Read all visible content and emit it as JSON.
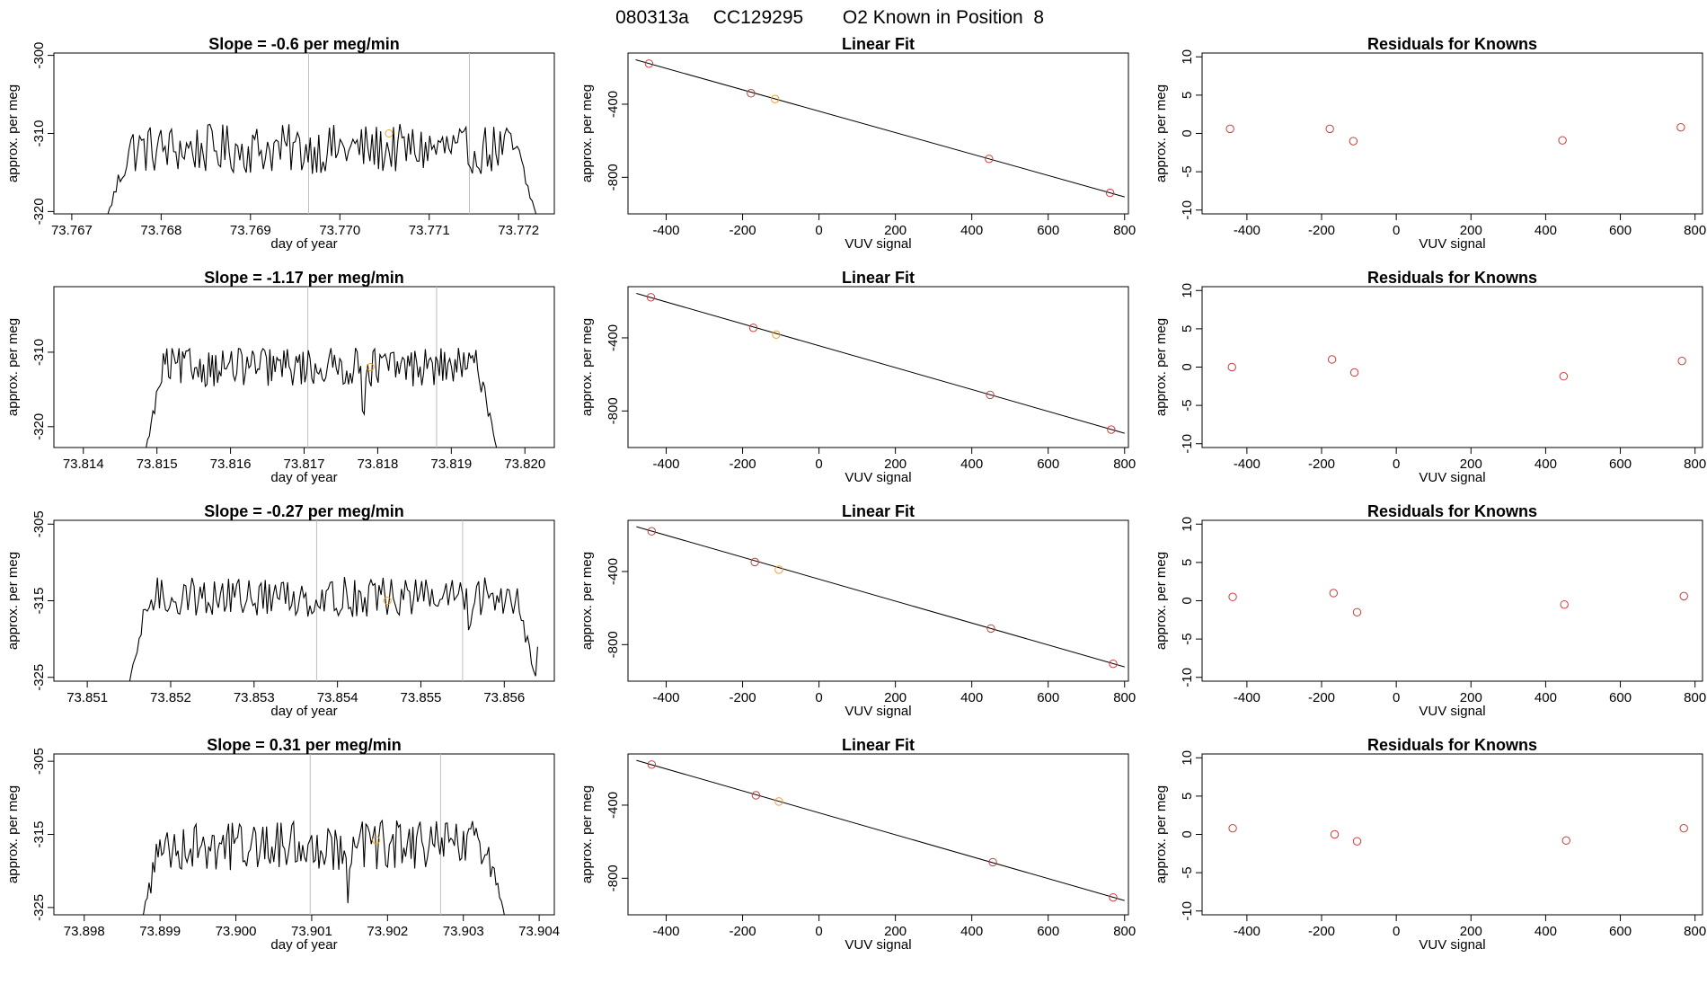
{
  "page": {
    "title_parts": [
      "080313a",
      "CC129295",
      "O2 Known in Position  8"
    ]
  },
  "colors": {
    "trace": "#000000",
    "point": "#cd3b3b",
    "highlight": "#f0a030",
    "guide": "#bebebe"
  },
  "chart_data": [
    {
      "type": "line",
      "row": 0,
      "col": 0,
      "title": "Slope =  -0.6  per meg/min",
      "xlabel": "day of year",
      "ylabel": "approx. per meg",
      "xlim": [
        73.7668,
        73.7724
      ],
      "ylim": [
        -320.3,
        -299.7
      ],
      "xticks": [
        73.767,
        73.768,
        73.769,
        73.77,
        73.771,
        73.772
      ],
      "xtick_labels": [
        "73.767",
        "73.768",
        "73.769",
        "73.770",
        "73.771",
        "73.772"
      ],
      "yticks": [
        -320,
        -310,
        -300
      ],
      "ytick_labels": [
        "-320",
        "-310",
        "-300"
      ],
      "guides": [
        73.76965,
        73.77145
      ],
      "trace_x_range": [
        73.7674,
        73.7722
      ],
      "trace_baseline": -312,
      "trace_amp": 3.2,
      "drop_start": -320.5,
      "drop_end": -320.5,
      "dip_near": 73.77145,
      "highlight_point": {
        "x": 73.77055,
        "y": -310
      }
    },
    {
      "type": "scatter",
      "row": 0,
      "col": 1,
      "title": "Linear Fit",
      "xlabel": "VUV signal",
      "ylabel": "approx. per meg",
      "xlim": [
        -500,
        810
      ],
      "ylim": [
        -1000,
        -120
      ],
      "xticks": [
        -400,
        -200,
        0,
        200,
        400,
        600,
        800
      ],
      "xtick_labels": [
        "-400",
        "-200",
        "0",
        "200",
        "400",
        "600",
        "800"
      ],
      "yticks": [
        -800,
        -400
      ],
      "ytick_labels": [
        "-800",
        "-400"
      ],
      "points": [
        [
          -445,
          -178
        ],
        [
          -178,
          -340
        ],
        [
          -115,
          -372
        ],
        [
          445,
          -699
        ],
        [
          762,
          -885
        ]
      ],
      "highlight_index": 2,
      "fit": {
        "x0": -480,
        "y0": -157,
        "x1": 800,
        "y1": -907
      }
    },
    {
      "type": "scatter",
      "row": 0,
      "col": 2,
      "title": "Residuals for Knowns",
      "xlabel": "VUV signal",
      "ylabel": "approx. per meg",
      "xlim": [
        -520,
        820
      ],
      "ylim": [
        -10.5,
        10.5
      ],
      "xticks": [
        -400,
        -200,
        0,
        200,
        400,
        600,
        800
      ],
      "xtick_labels": [
        "-400",
        "-200",
        "0",
        "200",
        "400",
        "600",
        "800"
      ],
      "yticks": [
        -10,
        -5,
        0,
        5,
        10
      ],
      "ytick_labels": [
        "-10",
        "-5",
        "0",
        "5",
        "10"
      ],
      "points": [
        [
          -445,
          0.6
        ],
        [
          -178,
          0.6
        ],
        [
          -115,
          -1.0
        ],
        [
          445,
          -0.9
        ],
        [
          762,
          0.8
        ]
      ]
    },
    {
      "type": "line",
      "row": 1,
      "col": 0,
      "title": "Slope =  -1.17  per meg/min",
      "xlabel": "day of year",
      "ylabel": "approx. per meg",
      "xlim": [
        73.8136,
        73.8204
      ],
      "ylim": [
        -322.8,
        -301.2
      ],
      "xticks": [
        73.814,
        73.815,
        73.816,
        73.817,
        73.818,
        73.819,
        73.82
      ],
      "xtick_labels": [
        "73.814",
        "73.815",
        "73.816",
        "73.817",
        "73.818",
        "73.819",
        "73.820"
      ],
      "yticks": [
        -320,
        -310
      ],
      "ytick_labels": [
        "-320",
        "-310"
      ],
      "guides": [
        73.81705,
        73.8188
      ],
      "trace_x_range": [
        73.81485,
        73.81962
      ],
      "trace_baseline": -312,
      "trace_amp": 2.6,
      "drop_start": -323,
      "drop_end": -323,
      "dip_near": 73.8178,
      "highlight_point": {
        "x": 73.8179,
        "y": -312
      }
    },
    {
      "type": "scatter",
      "row": 1,
      "col": 1,
      "title": "Linear Fit",
      "xlabel": "VUV signal",
      "ylabel": "approx. per meg",
      "xlim": [
        -500,
        810
      ],
      "ylim": [
        -1000,
        -120
      ],
      "xticks": [
        -400,
        -200,
        0,
        200,
        400,
        600,
        800
      ],
      "xtick_labels": [
        "-400",
        "-200",
        "0",
        "200",
        "400",
        "600",
        "800"
      ],
      "yticks": [
        -800,
        -400
      ],
      "ytick_labels": [
        "-800",
        "-400"
      ],
      "points": [
        [
          -440,
          -178
        ],
        [
          -172,
          -345
        ],
        [
          -112,
          -382
        ],
        [
          448,
          -712
        ],
        [
          765,
          -902
        ]
      ],
      "highlight_index": 2,
      "fit": {
        "x0": -478,
        "y0": -157,
        "x1": 800,
        "y1": -922
      }
    },
    {
      "type": "scatter",
      "row": 1,
      "col": 2,
      "title": "Residuals for Knowns",
      "xlabel": "VUV signal",
      "ylabel": "approx. per meg",
      "xlim": [
        -520,
        820
      ],
      "ylim": [
        -10.5,
        10.5
      ],
      "xticks": [
        -400,
        -200,
        0,
        200,
        400,
        600,
        800
      ],
      "xtick_labels": [
        "-400",
        "-200",
        "0",
        "200",
        "400",
        "600",
        "800"
      ],
      "yticks": [
        -10,
        -5,
        0,
        5,
        10
      ],
      "ytick_labels": [
        "-10",
        "-5",
        "0",
        "5",
        "10"
      ],
      "points": [
        [
          -440,
          0.0
        ],
        [
          -172,
          1.0
        ],
        [
          -112,
          -0.7
        ],
        [
          448,
          -1.2
        ],
        [
          765,
          0.8
        ]
      ]
    },
    {
      "type": "line",
      "row": 2,
      "col": 0,
      "title": "Slope =  -0.27  per meg/min",
      "xlabel": "day of year",
      "ylabel": "approx. per meg",
      "xlim": [
        73.8506,
        73.8566
      ],
      "ylim": [
        -325.5,
        -304.5
      ],
      "xticks": [
        73.851,
        73.852,
        73.853,
        73.854,
        73.855,
        73.856
      ],
      "xtick_labels": [
        "73.851",
        "73.852",
        "73.853",
        "73.854",
        "73.855",
        "73.856"
      ],
      "yticks": [
        -325,
        -315,
        -305
      ],
      "ytick_labels": [
        "-325",
        "-315",
        "-305"
      ],
      "guides": [
        73.85375,
        73.8555
      ],
      "trace_x_range": [
        73.8515,
        73.8564
      ],
      "trace_baseline": -314.5,
      "trace_amp": 2.6,
      "drop_start": -326,
      "drop_end": -321,
      "dip_near": 73.8556,
      "highlight_point": {
        "x": 73.8546,
        "y": -315
      }
    },
    {
      "type": "scatter",
      "row": 2,
      "col": 1,
      "title": "Linear Fit",
      "xlabel": "VUV signal",
      "ylabel": "approx. per meg",
      "xlim": [
        -500,
        810
      ],
      "ylim": [
        -1000,
        -120
      ],
      "xticks": [
        -400,
        -200,
        0,
        200,
        400,
        600,
        800
      ],
      "xtick_labels": [
        "-400",
        "-200",
        "0",
        "200",
        "400",
        "600",
        "800"
      ],
      "yticks": [
        -800,
        -400
      ],
      "ytick_labels": [
        "-800",
        "-400"
      ],
      "points": [
        [
          -438,
          -180
        ],
        [
          -168,
          -348
        ],
        [
          -105,
          -390
        ],
        [
          450,
          -712
        ],
        [
          770,
          -905
        ]
      ],
      "highlight_index": 2,
      "fit": {
        "x0": -478,
        "y0": -155,
        "x1": 800,
        "y1": -922
      }
    },
    {
      "type": "scatter",
      "row": 2,
      "col": 2,
      "title": "Residuals for Knowns",
      "xlabel": "VUV signal",
      "ylabel": "approx. per meg",
      "xlim": [
        -520,
        820
      ],
      "ylim": [
        -10.5,
        10.5
      ],
      "xticks": [
        -400,
        -200,
        0,
        200,
        400,
        600,
        800
      ],
      "xtick_labels": [
        "-400",
        "-200",
        "0",
        "200",
        "400",
        "600",
        "800"
      ],
      "yticks": [
        -10,
        -5,
        0,
        5,
        10
      ],
      "ytick_labels": [
        "-10",
        "-5",
        "0",
        "5",
        "10"
      ],
      "points": [
        [
          -438,
          0.5
        ],
        [
          -168,
          1.0
        ],
        [
          -105,
          -1.5
        ],
        [
          450,
          -0.5
        ],
        [
          770,
          0.6
        ]
      ]
    },
    {
      "type": "line",
      "row": 3,
      "col": 0,
      "title": "Slope =  0.31  per meg/min",
      "xlabel": "day of year",
      "ylabel": "approx. per meg",
      "xlim": [
        73.8976,
        73.9042
      ],
      "ylim": [
        -326,
        -304
      ],
      "xticks": [
        73.898,
        73.899,
        73.9,
        73.901,
        73.902,
        73.903,
        73.904
      ],
      "xtick_labels": [
        "73.898",
        "73.899",
        "73.900",
        "73.901",
        "73.902",
        "73.903",
        "73.904"
      ],
      "yticks": [
        -325,
        -315,
        -305
      ],
      "ytick_labels": [
        "-325",
        "-315",
        "-305"
      ],
      "guides": [
        73.90098,
        73.9027
      ],
      "trace_x_range": [
        73.89876,
        73.90355
      ],
      "trace_baseline": -316.5,
      "trace_amp": 3.4,
      "drop_start": -326.5,
      "drop_end": -326.5,
      "dip_near": 73.9015,
      "highlight_point": {
        "x": 73.90185,
        "y": -315.8
      }
    },
    {
      "type": "scatter",
      "row": 3,
      "col": 1,
      "title": "Linear Fit",
      "xlabel": "VUV signal",
      "ylabel": "approx. per meg",
      "xlim": [
        -500,
        810
      ],
      "ylim": [
        -1000,
        -120
      ],
      "xticks": [
        -400,
        -200,
        0,
        200,
        400,
        600,
        800
      ],
      "xtick_labels": [
        "-400",
        "-200",
        "0",
        "200",
        "400",
        "600",
        "800"
      ],
      "yticks": [
        -800,
        -400
      ],
      "ytick_labels": [
        "-800",
        "-400"
      ],
      "points": [
        [
          -438,
          -178
        ],
        [
          -165,
          -346
        ],
        [
          -105,
          -380
        ],
        [
          455,
          -712
        ],
        [
          770,
          -905
        ]
      ],
      "highlight_index": 2,
      "fit": {
        "x0": -478,
        "y0": -155,
        "x1": 800,
        "y1": -922
      }
    },
    {
      "type": "scatter",
      "row": 3,
      "col": 2,
      "title": "Residuals for Knowns",
      "xlabel": "VUV signal",
      "ylabel": "approx. per meg",
      "xlim": [
        -520,
        820
      ],
      "ylim": [
        -10.5,
        10.5
      ],
      "xticks": [
        -400,
        -200,
        0,
        200,
        400,
        600,
        800
      ],
      "xtick_labels": [
        "-400",
        "-200",
        "0",
        "200",
        "400",
        "600",
        "800"
      ],
      "yticks": [
        -10,
        -5,
        0,
        5,
        10
      ],
      "ytick_labels": [
        "-10",
        "-5",
        "0",
        "5",
        "10"
      ],
      "points": [
        [
          -438,
          0.8
        ],
        [
          -165,
          0.0
        ],
        [
          -105,
          -0.9
        ],
        [
          455,
          -0.8
        ],
        [
          770,
          0.8
        ]
      ]
    }
  ]
}
